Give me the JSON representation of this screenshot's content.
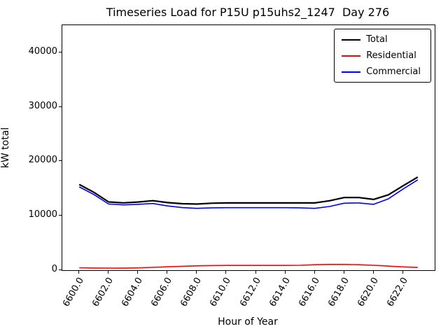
{
  "chart_data": {
    "type": "line",
    "title": "Timeseries Load for P15U p15uhs2_1247  Day 276",
    "xlabel": "Hour of Year",
    "ylabel": "kW total",
    "xlim": [
      6598.85,
      6624.15
    ],
    "ylim": [
      0,
      45000
    ],
    "grid": false,
    "legend_position": "upper right",
    "x": [
      6600,
      6601,
      6602,
      6603,
      6604,
      6605,
      6606,
      6607,
      6608,
      6609,
      6610,
      6611,
      6612,
      6613,
      6614,
      6615,
      6616,
      6617,
      6618,
      6619,
      6620,
      6621,
      6622,
      6623
    ],
    "xticks": [
      6600,
      6602,
      6604,
      6606,
      6608,
      6610,
      6612,
      6614,
      6616,
      6618,
      6620,
      6622
    ],
    "xtick_labels": [
      "6600.0",
      "6602.0",
      "6604.0",
      "6606.0",
      "6608.0",
      "6610.0",
      "6612.0",
      "6614.0",
      "6616.0",
      "6618.0",
      "6620.0",
      "6622.0"
    ],
    "yticks": [
      0,
      10000,
      20000,
      30000,
      40000
    ],
    "ytick_labels": [
      "0",
      "10000",
      "20000",
      "30000",
      "40000"
    ],
    "series": [
      {
        "name": "Total",
        "color": "#000000",
        "linewidth": 2.2,
        "values": [
          15750,
          14300,
          12530,
          12370,
          12520,
          12770,
          12420,
          12220,
          12150,
          12300,
          12350,
          12350,
          12350,
          12350,
          12360,
          12350,
          12350,
          12750,
          13350,
          13350,
          13000,
          13850,
          15500,
          17100
        ]
      },
      {
        "name": "Residential",
        "color": "#ff0000",
        "linewidth": 1.6,
        "values": [
          450,
          400,
          380,
          370,
          420,
          520,
          620,
          720,
          800,
          850,
          870,
          870,
          870,
          870,
          880,
          900,
          1000,
          1050,
          1050,
          1000,
          900,
          750,
          600,
          500
        ]
      },
      {
        "name": "Commercial",
        "color": "#0000ff",
        "linewidth": 1.6,
        "values": [
          15300,
          13900,
          12150,
          12000,
          12100,
          12250,
          11800,
          11500,
          11350,
          11450,
          11480,
          11480,
          11480,
          11480,
          11480,
          11450,
          11350,
          11700,
          12300,
          12350,
          12100,
          13100,
          14900,
          16600
        ]
      }
    ]
  }
}
